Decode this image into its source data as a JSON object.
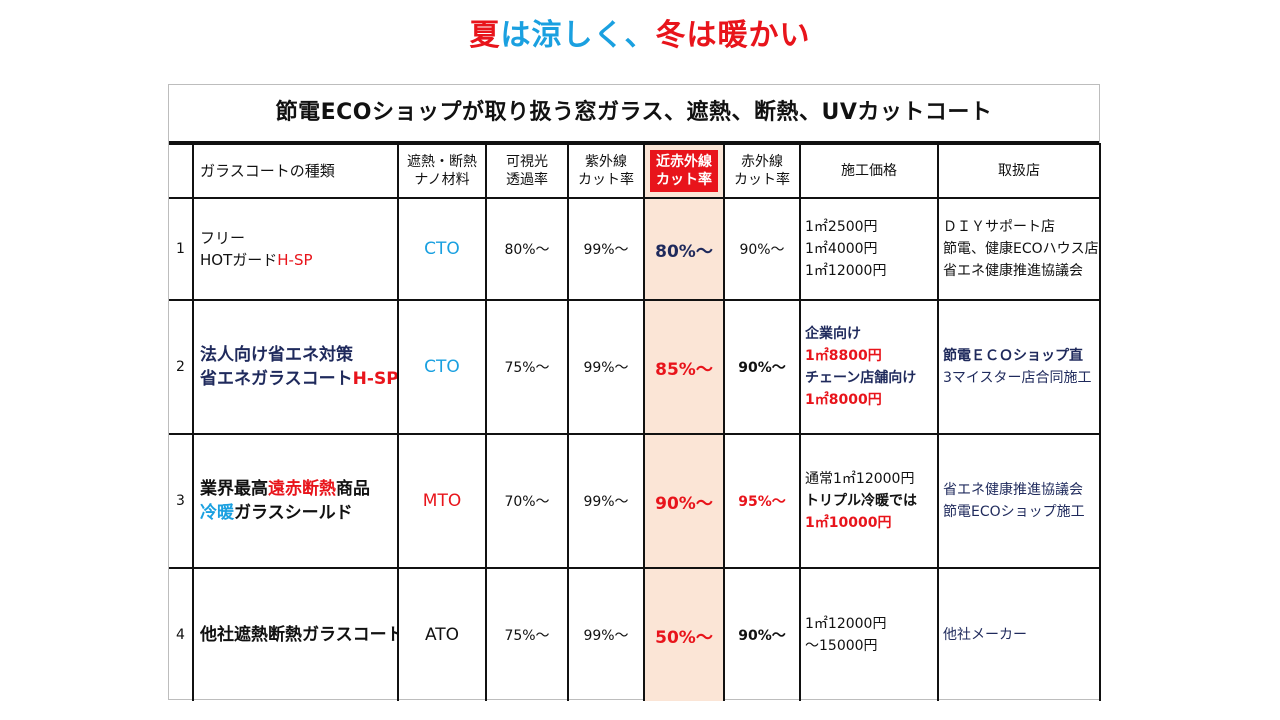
{
  "page_title": {
    "part1": "夏",
    "part2": "は涼しく、",
    "part3": "冬",
    "part4": "は暖かい"
  },
  "table": {
    "title": "節電ECOショップが取り扱う窓ガラス、遮熱、断熱、UVカットコート",
    "headers": {
      "num": "",
      "type": "ガラスコートの種類",
      "material": [
        "遮熱・断熱",
        "ナノ材料"
      ],
      "visible": [
        "可視光",
        "透過率"
      ],
      "uv": [
        "紫外線",
        "カット率"
      ],
      "nir": [
        "近赤外線",
        "カット率"
      ],
      "ir": [
        "赤外線",
        "カット率"
      ],
      "price": "施工価格",
      "shop": "取扱店"
    },
    "rows": [
      {
        "num": "1",
        "name": [
          "フリー",
          "HOTガード",
          "H-SP"
        ],
        "material": "CTO",
        "visible": "80%～",
        "uv": "99%～",
        "nir": "80%～",
        "ir": "90%～",
        "price": [
          "1㎡2500円",
          "1㎡4000円",
          "1㎡12000円"
        ],
        "shop": [
          "ＤＩＹサポート店",
          "節電、健康ECOハウス店",
          "省エネ健康推進協議会"
        ]
      },
      {
        "num": "2",
        "name": [
          "法人向け省エネ対策",
          "省エネガラスコート",
          "H-SP"
        ],
        "material": "CTO",
        "visible": "75%～",
        "uv": "99%～",
        "nir": "85%～",
        "ir": "90%～",
        "price": [
          "企業向け",
          "1㎡8800円",
          "チェーン店舗向け",
          "1㎡8000円"
        ],
        "shop": [
          "節電ＥＣＯショップ直",
          "3マイスター店合同施工"
        ]
      },
      {
        "num": "3",
        "name": [
          "業界最高",
          "遠赤断熱",
          "商品",
          "冷暖",
          "ガラスシールド"
        ],
        "material": "MTO",
        "visible": "70%～",
        "uv": "99%～",
        "nir": "90%～",
        "ir": "95%～",
        "price": [
          "通常1㎡12000円",
          "トリプル冷暖では",
          "1㎡10000円"
        ],
        "shop": [
          "省エネ健康推進協議会",
          "節電ECOショップ施工"
        ]
      },
      {
        "num": "4",
        "name": [
          "他社遮熱断熱ガラスコート"
        ],
        "material": "ATO",
        "visible": "75%～",
        "uv": "99%～",
        "nir": "50%～",
        "ir": "90%～",
        "price": [
          "1㎡12000円",
          "～15000円"
        ],
        "shop": [
          "他社メーカー"
        ]
      }
    ]
  },
  "colors": {
    "accent_red": "#e8141b",
    "accent_blue": "#1aa0e0",
    "navy": "#1f2a5c",
    "highlight_column": "#fbe5d6"
  }
}
